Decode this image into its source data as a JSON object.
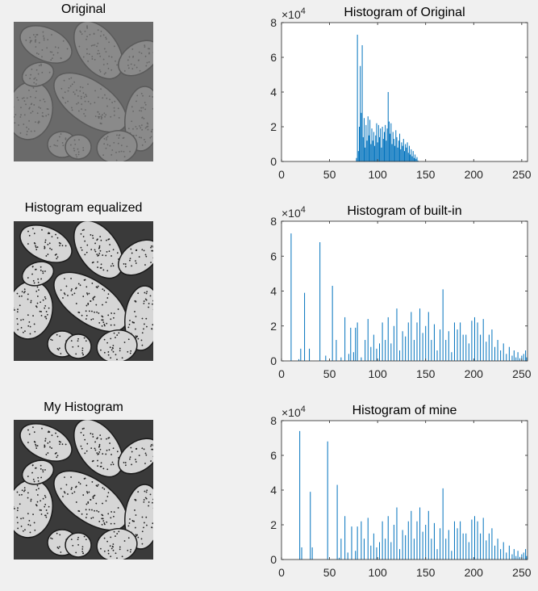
{
  "images": [
    {
      "title": "Original",
      "shade": "low-contrast"
    },
    {
      "title": "Histogram equalized",
      "shade": "high-contrast"
    },
    {
      "title": "My Histogram",
      "shade": "high-contrast"
    }
  ],
  "colors": {
    "bar": "#0072bd",
    "axis": "#262626",
    "background": "#f0f0f0",
    "plot_bg": "#ffffff"
  },
  "chart_data": [
    {
      "type": "bar",
      "title": "Histogram of Original",
      "xlim": [
        0,
        256
      ],
      "ylim": [
        0,
        80000
      ],
      "xticks": [
        "0",
        "50",
        "100",
        "150",
        "200",
        "250"
      ],
      "yticks": [
        "0",
        "2",
        "4",
        "6",
        "8"
      ],
      "y_exponent": "×10",
      "y_exponent_power": "4",
      "x": [
        78,
        79,
        80,
        81,
        82,
        83,
        84,
        85,
        86,
        87,
        88,
        89,
        90,
        91,
        92,
        93,
        94,
        95,
        96,
        97,
        98,
        99,
        100,
        101,
        102,
        103,
        104,
        105,
        106,
        107,
        108,
        109,
        110,
        111,
        112,
        113,
        114,
        115,
        116,
        117,
        118,
        119,
        120,
        121,
        122,
        123,
        124,
        125,
        126,
        127,
        128,
        129,
        130,
        131,
        132,
        133,
        134,
        135,
        136,
        137,
        138,
        139,
        140,
        141,
        142
      ],
      "y": [
        2000,
        73000,
        6000,
        20000,
        55000,
        28000,
        67000,
        14000,
        25000,
        8000,
        21000,
        12000,
        26000,
        15000,
        24000,
        10000,
        19000,
        12000,
        17000,
        9000,
        15000,
        22000,
        11000,
        21000,
        14000,
        19000,
        8000,
        20000,
        13000,
        17000,
        21000,
        12000,
        19000,
        40000,
        23000,
        16000,
        22000,
        10000,
        17000,
        13000,
        9000,
        18000,
        14000,
        8000,
        12000,
        16000,
        7000,
        11000,
        9000,
        13000,
        6000,
        10000,
        8000,
        11000,
        5000,
        9000,
        4000,
        7000,
        3000,
        6000,
        2000,
        4000,
        1500,
        2500,
        500
      ]
    },
    {
      "type": "bar",
      "title": "Histogram of built-in",
      "xlim": [
        0,
        256
      ],
      "ylim": [
        0,
        80000
      ],
      "xticks": [
        "0",
        "50",
        "100",
        "150",
        "200",
        "250"
      ],
      "yticks": [
        "0",
        "2",
        "4",
        "6",
        "8"
      ],
      "y_exponent": "×10",
      "y_exponent_power": "4",
      "x": [
        10,
        18,
        20,
        24,
        29,
        40,
        46,
        53,
        57,
        62,
        66,
        70,
        72,
        75,
        77,
        79,
        83,
        87,
        90,
        93,
        96,
        99,
        102,
        105,
        108,
        111,
        114,
        117,
        120,
        123,
        126,
        129,
        132,
        135,
        138,
        141,
        144,
        147,
        150,
        153,
        156,
        159,
        162,
        165,
        168,
        171,
        174,
        177,
        180,
        183,
        186,
        189,
        192,
        195,
        198,
        201,
        204,
        207,
        210,
        213,
        216,
        219,
        222,
        225,
        228,
        231,
        234,
        237,
        240,
        242,
        244,
        246,
        248,
        250,
        252,
        254,
        255
      ],
      "y": [
        73000,
        1000,
        7000,
        39000,
        7000,
        68000,
        3000,
        43000,
        12000,
        2000,
        25000,
        4000,
        19000,
        5000,
        19000,
        22000,
        2000,
        12000,
        24000,
        8000,
        15000,
        7000,
        10000,
        22000,
        12000,
        25000,
        10000,
        20000,
        30000,
        6000,
        17000,
        14000,
        22000,
        28000,
        12000,
        22000,
        30000,
        16000,
        20000,
        28000,
        12000,
        21000,
        6000,
        18000,
        41000,
        12000,
        17000,
        5000,
        22000,
        18000,
        22000,
        15000,
        15000,
        10000,
        23000,
        25000,
        22000,
        15000,
        24000,
        11000,
        15000,
        18000,
        8000,
        12000,
        6000,
        10000,
        4000,
        8000,
        3000,
        6000,
        2000,
        5000,
        1500,
        3000,
        4000,
        6000,
        2000
      ]
    },
    {
      "type": "bar",
      "title": "Histogram of mine",
      "xlim": [
        0,
        256
      ],
      "ylim": [
        0,
        80000
      ],
      "xticks": [
        "0",
        "50",
        "100",
        "150",
        "200",
        "250"
      ],
      "yticks": [
        "0",
        "2",
        "4",
        "6",
        "8"
      ],
      "y_exponent": "×10",
      "y_exponent_power": "4",
      "x": [
        19,
        21,
        30,
        32,
        48,
        58,
        60,
        62,
        66,
        69,
        73,
        77,
        79,
        83,
        86,
        90,
        93,
        96,
        99,
        102,
        105,
        108,
        111,
        114,
        117,
        120,
        123,
        126,
        129,
        132,
        135,
        138,
        141,
        144,
        147,
        150,
        153,
        156,
        159,
        162,
        165,
        168,
        171,
        174,
        177,
        180,
        183,
        186,
        189,
        192,
        195,
        198,
        201,
        204,
        207,
        210,
        213,
        216,
        219,
        222,
        225,
        228,
        231,
        234,
        237,
        240,
        242,
        244,
        246,
        248,
        250,
        252,
        254,
        255
      ],
      "y": [
        74000,
        7000,
        39000,
        7000,
        68000,
        43000,
        1000,
        12000,
        25000,
        4000,
        19000,
        5000,
        19000,
        22000,
        12000,
        24000,
        8000,
        15000,
        7000,
        10000,
        22000,
        12000,
        25000,
        10000,
        20000,
        30000,
        6000,
        17000,
        14000,
        22000,
        28000,
        12000,
        22000,
        30000,
        16000,
        20000,
        28000,
        12000,
        21000,
        6000,
        18000,
        41000,
        12000,
        17000,
        5000,
        22000,
        18000,
        22000,
        15000,
        15000,
        10000,
        23000,
        25000,
        22000,
        15000,
        24000,
        11000,
        15000,
        18000,
        8000,
        12000,
        6000,
        10000,
        4000,
        8000,
        3000,
        6000,
        2000,
        5000,
        1500,
        3000,
        4000,
        6000,
        2000
      ]
    }
  ]
}
